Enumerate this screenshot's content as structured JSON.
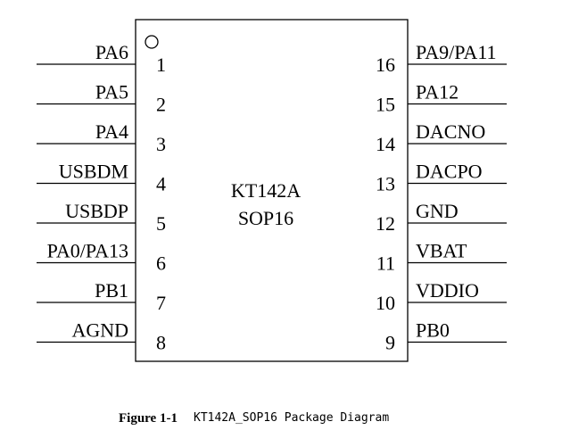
{
  "chip": {
    "name": "KT142A",
    "package": "SOP16"
  },
  "left_pins": [
    {
      "num": "1",
      "label": "PA6"
    },
    {
      "num": "2",
      "label": "PA5"
    },
    {
      "num": "3",
      "label": "PA4"
    },
    {
      "num": "4",
      "label": "USBDM"
    },
    {
      "num": "5",
      "label": "USBDP"
    },
    {
      "num": "6",
      "label": "PA0/PA13"
    },
    {
      "num": "7",
      "label": "PB1"
    },
    {
      "num": "8",
      "label": "AGND"
    }
  ],
  "right_pins": [
    {
      "num": "16",
      "label": "PA9/PA11"
    },
    {
      "num": "15",
      "label": "PA12"
    },
    {
      "num": "14",
      "label": "DACNO"
    },
    {
      "num": "13",
      "label": "DACPO"
    },
    {
      "num": "12",
      "label": "GND"
    },
    {
      "num": "11",
      "label": "VBAT"
    },
    {
      "num": "10",
      "label": "VDDIO"
    },
    {
      "num": "9",
      "label": "PB0"
    }
  ],
  "caption": {
    "figure": "Figure 1-1",
    "text": "KT142A_SOP16 Package Diagram"
  }
}
